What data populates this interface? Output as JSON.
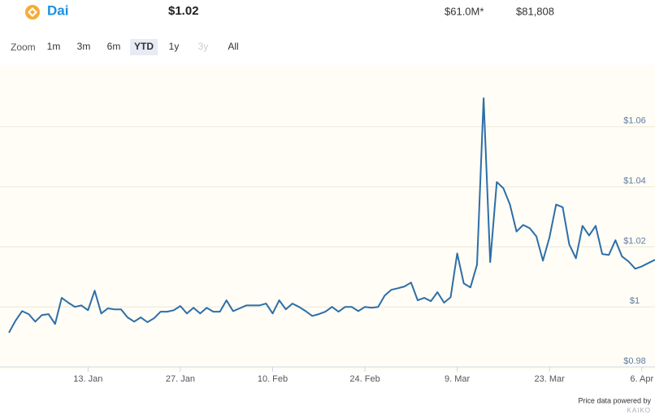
{
  "header": {
    "name": "Dai",
    "price": "$1.02",
    "market_cap": "$61.0M*",
    "volume": "$81,808"
  },
  "zoom": {
    "label": "Zoom",
    "buttons": [
      "1m",
      "3m",
      "6m",
      "YTD",
      "1y",
      "3y",
      "All"
    ],
    "selected": "YTD",
    "disabled": [
      "3y"
    ]
  },
  "credit": {
    "text": "Price data powered by",
    "brand": "KAIKO"
  },
  "chart_data": {
    "type": "line",
    "color": "#2c6ea8",
    "grid": true,
    "categories": [
      null,
      null,
      null,
      null,
      null,
      null,
      null,
      null,
      null,
      null,
      null,
      null,
      "13. Jan",
      null,
      null,
      null,
      null,
      null,
      null,
      null,
      null,
      null,
      null,
      null,
      null,
      null,
      "27. Jan",
      null,
      null,
      null,
      null,
      null,
      null,
      null,
      null,
      null,
      null,
      null,
      null,
      null,
      "10. Feb",
      null,
      null,
      null,
      null,
      null,
      null,
      null,
      null,
      null,
      null,
      null,
      null,
      null,
      "24. Feb",
      null,
      null,
      null,
      null,
      null,
      null,
      null,
      null,
      null,
      null,
      null,
      null,
      null,
      "9. Mar",
      null,
      null,
      null,
      null,
      null,
      null,
      null,
      null,
      null,
      null,
      null,
      null,
      null,
      "23. Mar",
      null,
      null,
      null,
      null,
      null,
      null,
      null,
      null,
      null,
      null,
      null,
      null,
      null,
      "6. Apr",
      null,
      null
    ],
    "values": [
      0.9914,
      0.9954,
      0.9986,
      0.9976,
      0.9951,
      0.9973,
      0.9976,
      0.9943,
      1.003,
      1.0014,
      1.0,
      1.0005,
      0.9989,
      1.0054,
      0.9978,
      0.9995,
      0.9992,
      0.9992,
      0.9965,
      0.9951,
      0.9965,
      0.9949,
      0.9962,
      0.9984,
      0.9984,
      0.9989,
      1.0003,
      0.9978,
      0.9997,
      0.9978,
      0.9997,
      0.9984,
      0.9984,
      1.0022,
      0.9986,
      0.9995,
      1.0005,
      1.0005,
      1.0005,
      1.0011,
      0.9978,
      1.0022,
      0.9992,
      1.0011,
      1.0,
      0.9986,
      0.997,
      0.9976,
      0.9984,
      1.0,
      0.9984,
      1.0,
      1.0,
      0.9986,
      1.0,
      0.9997,
      1.0,
      1.0038,
      1.0057,
      1.0062,
      1.0068,
      1.0081,
      1.0022,
      1.003,
      1.0019,
      1.0049,
      1.0014,
      1.0032,
      1.0178,
      1.0078,
      1.0065,
      1.0141,
      1.0695,
      1.0149,
      1.0416,
      1.0395,
      1.0341,
      1.0251,
      1.0273,
      1.0262,
      1.0235,
      1.0154,
      1.0232,
      1.0341,
      1.0332,
      1.0208,
      1.0162,
      1.027,
      1.0238,
      1.027,
      1.0176,
      1.0173,
      1.0222,
      1.0168,
      1.0151,
      1.0127,
      1.0135,
      1.0146,
      1.0157
    ],
    "ylim": [
      0.98,
      1.08
    ],
    "yticks": [
      {
        "value": 0.98,
        "label": "$0.98"
      },
      {
        "value": 1.0,
        "label": "$1"
      },
      {
        "value": 1.02,
        "label": "$1.02"
      },
      {
        "value": 1.04,
        "label": "$1.04"
      },
      {
        "value": 1.06,
        "label": "$1.06"
      }
    ]
  }
}
